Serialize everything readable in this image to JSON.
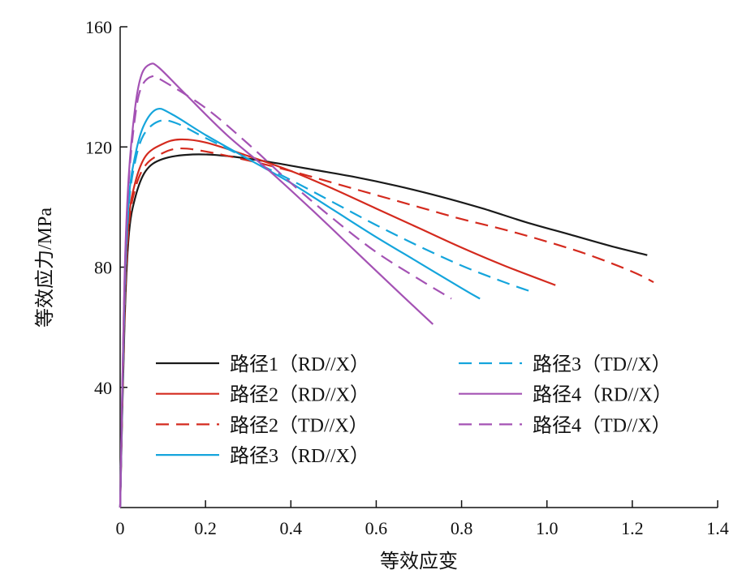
{
  "chart_data": {
    "type": "line",
    "xlabel": "等效应变",
    "ylabel": "等效应力/MPa",
    "xlim": [
      0,
      1.4
    ],
    "ylim": [
      0,
      160
    ],
    "xticks": [
      "0",
      "0.2",
      "0.4",
      "0.6",
      "0.8",
      "1.0",
      "1.2",
      "1.4"
    ],
    "yticks": [
      "40",
      "80",
      "120",
      "160"
    ],
    "xtick_values": [
      0,
      0.2,
      0.4,
      0.6,
      0.8,
      1.0,
      1.2,
      1.4
    ],
    "ytick_values": [
      40,
      80,
      120,
      160
    ],
    "grid": false,
    "legend_position": "lower-left, two columns",
    "series": [
      {
        "name": "路径1（RD//X）",
        "color": "#1a1a1a",
        "dash": "solid",
        "points": [
          [
            0,
            0
          ],
          [
            0.01,
            60
          ],
          [
            0.02,
            90
          ],
          [
            0.035,
            103
          ],
          [
            0.06,
            112
          ],
          [
            0.1,
            116
          ],
          [
            0.17,
            117.5
          ],
          [
            0.25,
            117
          ],
          [
            0.35,
            115
          ],
          [
            0.45,
            112.5
          ],
          [
            0.55,
            110
          ],
          [
            0.65,
            107
          ],
          [
            0.75,
            103.5
          ],
          [
            0.85,
            99.5
          ],
          [
            0.95,
            95
          ],
          [
            1.05,
            91
          ],
          [
            1.15,
            87
          ],
          [
            1.235,
            84
          ]
        ]
      },
      {
        "name": "路径2（RD//X）",
        "color": "#d42a1e",
        "dash": "solid",
        "points": [
          [
            0,
            0
          ],
          [
            0.01,
            65
          ],
          [
            0.02,
            95
          ],
          [
            0.035,
            108
          ],
          [
            0.06,
            117
          ],
          [
            0.1,
            121
          ],
          [
            0.14,
            122.5
          ],
          [
            0.2,
            121.5
          ],
          [
            0.3,
            117
          ],
          [
            0.4,
            112
          ],
          [
            0.5,
            106
          ],
          [
            0.6,
            99.5
          ],
          [
            0.7,
            93
          ],
          [
            0.8,
            86.5
          ],
          [
            0.9,
            80.5
          ],
          [
            1.02,
            74
          ]
        ]
      },
      {
        "name": "路径2（TD//X）",
        "color": "#d42a1e",
        "dash": "dashed",
        "points": [
          [
            0,
            0
          ],
          [
            0.01,
            63
          ],
          [
            0.02,
            93
          ],
          [
            0.035,
            106
          ],
          [
            0.06,
            114
          ],
          [
            0.1,
            118
          ],
          [
            0.14,
            119.5
          ],
          [
            0.2,
            118.5
          ],
          [
            0.3,
            115.5
          ],
          [
            0.4,
            112
          ],
          [
            0.5,
            108
          ],
          [
            0.6,
            104
          ],
          [
            0.7,
            100
          ],
          [
            0.8,
            96
          ],
          [
            0.9,
            92.5
          ],
          [
            1.0,
            88.5
          ],
          [
            1.1,
            84
          ],
          [
            1.2,
            78.5
          ],
          [
            1.25,
            75
          ]
        ]
      },
      {
        "name": "路径3（RD//X）",
        "color": "#15a5dc",
        "dash": "solid",
        "points": [
          [
            0,
            0
          ],
          [
            0.01,
            70
          ],
          [
            0.02,
            102
          ],
          [
            0.035,
            117
          ],
          [
            0.055,
            127
          ],
          [
            0.085,
            132.5
          ],
          [
            0.12,
            131
          ],
          [
            0.2,
            124
          ],
          [
            0.3,
            116
          ],
          [
            0.4,
            108
          ],
          [
            0.5,
            99
          ],
          [
            0.6,
            90
          ],
          [
            0.7,
            81.5
          ],
          [
            0.8,
            73
          ],
          [
            0.843,
            69.5
          ]
        ]
      },
      {
        "name": "路径3（TD//X）",
        "color": "#15a5dc",
        "dash": "dashed",
        "points": [
          [
            0,
            0
          ],
          [
            0.01,
            68
          ],
          [
            0.02,
            100
          ],
          [
            0.035,
            115
          ],
          [
            0.055,
            124
          ],
          [
            0.09,
            128.5
          ],
          [
            0.13,
            128
          ],
          [
            0.2,
            123
          ],
          [
            0.3,
            116
          ],
          [
            0.4,
            109
          ],
          [
            0.5,
            101.5
          ],
          [
            0.6,
            94
          ],
          [
            0.7,
            87
          ],
          [
            0.8,
            80.5
          ],
          [
            0.9,
            75
          ],
          [
            0.96,
            72
          ]
        ]
      },
      {
        "name": "路径4（RD//X）",
        "color": "#a452b4",
        "dash": "solid",
        "points": [
          [
            0,
            0
          ],
          [
            0.01,
            75
          ],
          [
            0.02,
            110
          ],
          [
            0.035,
            133
          ],
          [
            0.05,
            144
          ],
          [
            0.07,
            147.5
          ],
          [
            0.09,
            146.5
          ],
          [
            0.15,
            138
          ],
          [
            0.25,
            124
          ],
          [
            0.35,
            112
          ],
          [
            0.45,
            99
          ],
          [
            0.55,
            85.5
          ],
          [
            0.65,
            72
          ],
          [
            0.733,
            61
          ]
        ]
      },
      {
        "name": "路径4（TD//X）",
        "color": "#a452b4",
        "dash": "dashed",
        "points": [
          [
            0,
            0
          ],
          [
            0.01,
            73
          ],
          [
            0.02,
            108
          ],
          [
            0.035,
            130
          ],
          [
            0.05,
            140
          ],
          [
            0.075,
            143.5
          ],
          [
            0.1,
            142
          ],
          [
            0.2,
            133
          ],
          [
            0.3,
            121
          ],
          [
            0.4,
            108
          ],
          [
            0.5,
            96
          ],
          [
            0.6,
            85
          ],
          [
            0.7,
            76
          ],
          [
            0.776,
            69.5
          ]
        ]
      }
    ]
  }
}
